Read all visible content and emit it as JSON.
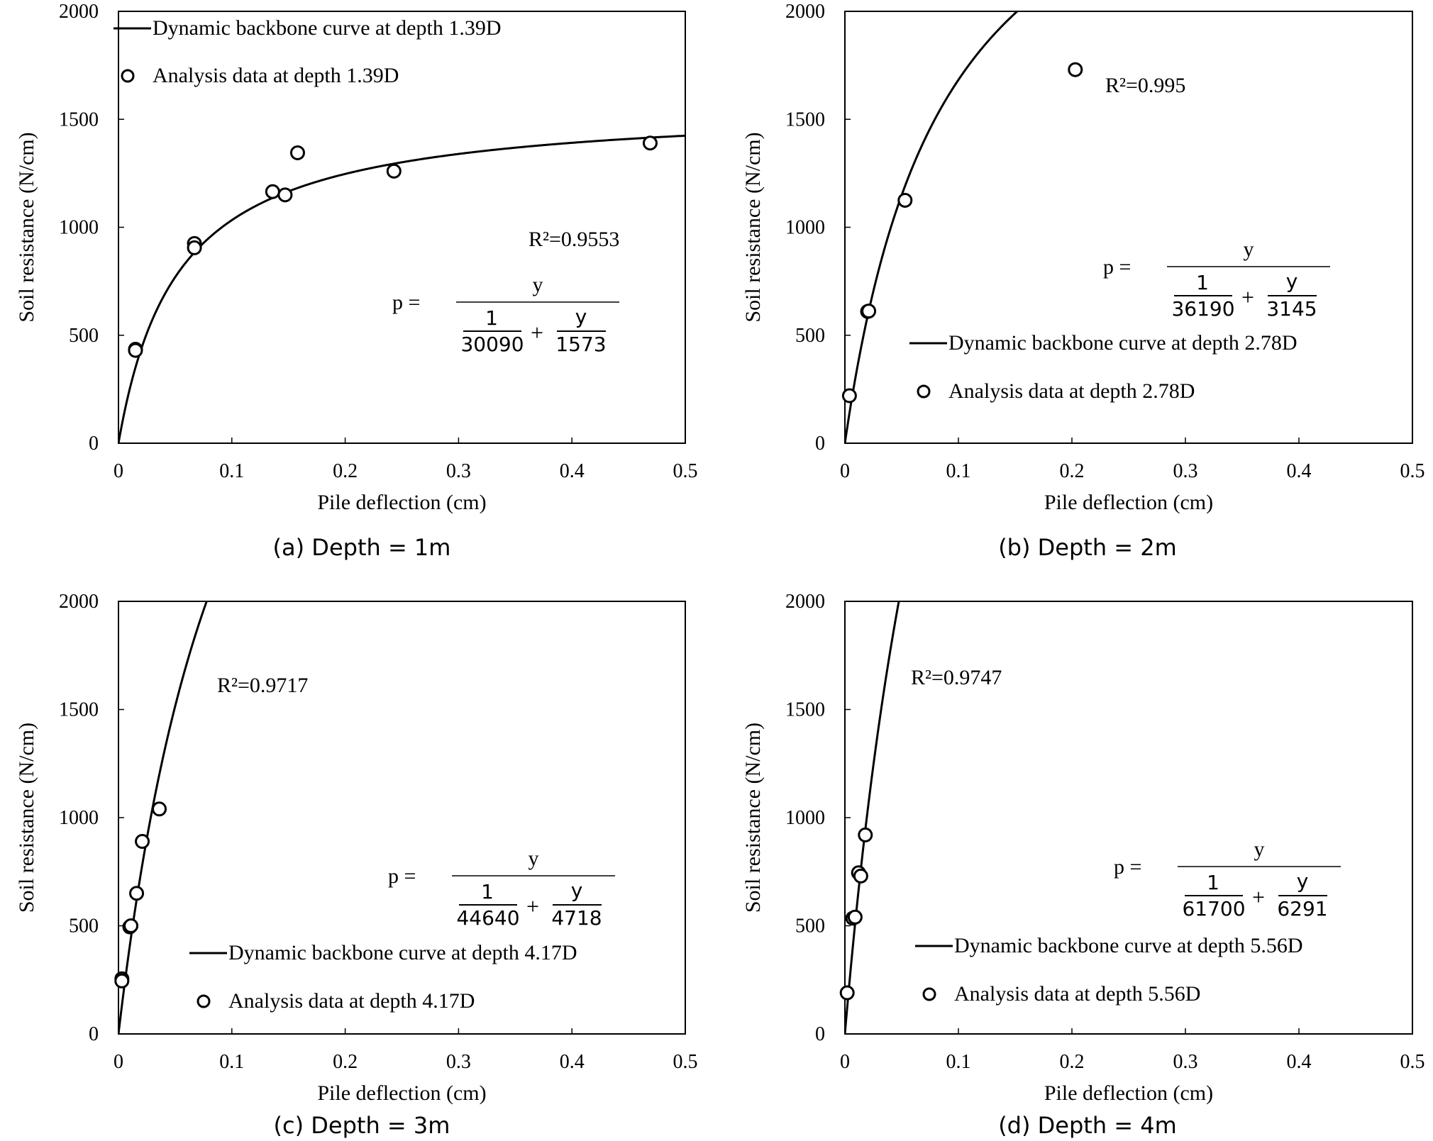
{
  "chart_data": [
    {
      "type": "scatter",
      "caption": "(a) Depth = 1m",
      "xlabel": "Pile deflection (cm)",
      "ylabel": "Soil resistance (N/cm)",
      "xlim": [
        0,
        0.5
      ],
      "ylim": [
        0,
        2000
      ],
      "xticks": [
        "0",
        "0.1",
        "0.2",
        "0.3",
        "0.4",
        "0.5"
      ],
      "yticks": [
        "0",
        "500",
        "1000",
        "1500",
        "2000"
      ],
      "grid": false,
      "legend_position": "top-left",
      "legend": {
        "line": "Dynamic backbone curve at depth 1.39D",
        "points": "Analysis data at depth 1.39D"
      },
      "r2_text": "R²=0.9553",
      "equation": {
        "lhs": "p =",
        "numerator": "y",
        "term1_num": "1",
        "term1_den": "30090",
        "plus": "+",
        "term2_num": "y",
        "term2_den": "1573"
      },
      "curve": {
        "a": 30090,
        "b": 1573
      },
      "series": [
        {
          "name": "Analysis data at depth 1.39D",
          "x": [
            0.015,
            0.015,
            0.067,
            0.067,
            0.136,
            0.147,
            0.158,
            0.243,
            0.469
          ],
          "y": [
            435,
            430,
            925,
            905,
            1165,
            1150,
            1345,
            1260,
            1390
          ]
        }
      ]
    },
    {
      "type": "scatter",
      "caption": "(b) Depth = 2m",
      "xlabel": "Pile deflection (cm)",
      "ylabel": "Soil resistance (N/cm)",
      "xlim": [
        0,
        0.5
      ],
      "ylim": [
        0,
        2000
      ],
      "xticks": [
        "0",
        "0.1",
        "0.2",
        "0.3",
        "0.4",
        "0.5"
      ],
      "yticks": [
        "0",
        "500",
        "1000",
        "1500",
        "2000"
      ],
      "grid": false,
      "legend_position": "lower-right",
      "legend": {
        "line": "Dynamic backbone curve at depth 2.78D",
        "points": "Analysis data at depth 2.78D"
      },
      "r2_text": "R²=0.995",
      "equation": {
        "lhs": "p =",
        "numerator": "y",
        "term1_num": "1",
        "term1_den": "36190",
        "plus": "+",
        "term2_num": "y",
        "term2_den": "3145"
      },
      "curve": {
        "a": 36190,
        "b": 3145
      },
      "series": [
        {
          "name": "Analysis data at depth 2.78D",
          "x": [
            0.004,
            0.02,
            0.021,
            0.053,
            0.203
          ],
          "y": [
            220,
            610,
            612,
            1125,
            1730
          ]
        }
      ]
    },
    {
      "type": "scatter",
      "caption": "(c) Depth = 3m",
      "xlabel": "Pile deflection (cm)",
      "ylabel": "Soil resistance (N/cm)",
      "xlim": [
        0,
        0.5
      ],
      "ylim": [
        0,
        2000
      ],
      "xticks": [
        "0",
        "0.1",
        "0.2",
        "0.3",
        "0.4",
        "0.5"
      ],
      "yticks": [
        "0",
        "500",
        "1000",
        "1500",
        "2000"
      ],
      "grid": false,
      "legend_position": "lower-right",
      "legend": {
        "line": "Dynamic backbone curve at depth 4.17D",
        "points": "Analysis data at depth 4.17D"
      },
      "r2_text": "R²=0.9717",
      "equation": {
        "lhs": "p =",
        "numerator": "y",
        "term1_num": "1",
        "term1_den": "44640",
        "plus": "+",
        "term2_num": "y",
        "term2_den": "4718"
      },
      "curve": {
        "a": 44640,
        "b": 4718
      },
      "series": [
        {
          "name": "Analysis data at depth 4.17D",
          "x": [
            0.003,
            0.003,
            0.01,
            0.011,
            0.016,
            0.021,
            0.036
          ],
          "y": [
            255,
            245,
            495,
            500,
            650,
            890,
            1040
          ]
        }
      ]
    },
    {
      "type": "scatter",
      "caption": "(d) Depth = 4m",
      "xlabel": "Pile deflection (cm)",
      "ylabel": "Soil resistance (N/cm)",
      "xlim": [
        0,
        0.5
      ],
      "ylim": [
        0,
        2000
      ],
      "xticks": [
        "0",
        "0.1",
        "0.2",
        "0.3",
        "0.4",
        "0.5"
      ],
      "yticks": [
        "0",
        "500",
        "1000",
        "1500",
        "2000"
      ],
      "grid": false,
      "legend_position": "lower-right",
      "legend": {
        "line": "Dynamic backbone curve at depth 5.56D",
        "points": "Analysis data at depth 5.56D"
      },
      "r2_text": "R²=0.9747",
      "equation": {
        "lhs": "p =",
        "numerator": "y",
        "term1_num": "1",
        "term1_den": "61700",
        "plus": "+",
        "term2_num": "y",
        "term2_den": "6291"
      },
      "curve": {
        "a": 61700,
        "b": 6291
      },
      "series": [
        {
          "name": "Analysis data at depth 5.56D",
          "x": [
            0.002,
            0.007,
            0.009,
            0.012,
            0.014,
            0.018
          ],
          "y": [
            190,
            535,
            540,
            745,
            730,
            920
          ]
        }
      ]
    }
  ]
}
